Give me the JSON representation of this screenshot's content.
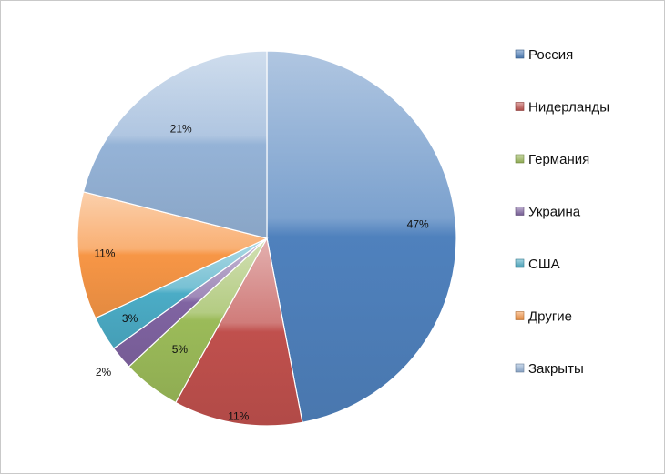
{
  "chart_data": {
    "type": "pie",
    "title": "",
    "slices": [
      {
        "name": "Россия",
        "value": 47,
        "label": "47%",
        "color": "#4f81bd"
      },
      {
        "name": "Нидерланды",
        "value": 11,
        "label": "11%",
        "color": "#c0504d"
      },
      {
        "name": "Германия",
        "value": 5,
        "label": "5%",
        "color": "#9bbb59"
      },
      {
        "name": "Украина",
        "value": 2,
        "label": "2%",
        "color": "#8064a2"
      },
      {
        "name": "США",
        "value": 3,
        "label": "3%",
        "color": "#4bacc6"
      },
      {
        "name": "Другие",
        "value": 11,
        "label": "11%",
        "color": "#f79646"
      },
      {
        "name": "Закрыты",
        "value": 21,
        "label": "21%",
        "color": "#95b3d7"
      }
    ],
    "legend_position": "right"
  }
}
